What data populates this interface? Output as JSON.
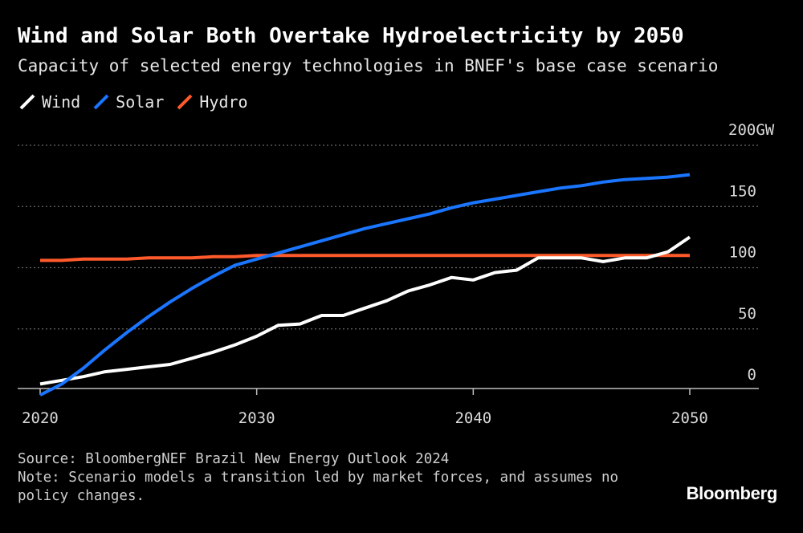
{
  "header": {
    "title": "Wind and Solar Both Overtake Hydroelectricity by 2050",
    "subtitle": "Capacity of selected energy technologies in BNEF's base case scenario"
  },
  "footer": {
    "source": "Source: BloombergNEF Brazil New Energy Outlook 2024",
    "note": "Note: Scenario models a transition led by market forces, and assumes no policy changes.",
    "brand": "Bloomberg"
  },
  "chart_data": {
    "type": "line",
    "title": "Wind and Solar Both Overtake Hydroelectricity by 2050",
    "subtitle": "Capacity of selected energy technologies in BNEF's base case scenario",
    "xlabel": "",
    "ylabel": "",
    "xlim": [
      2020,
      2053
    ],
    "ylim": [
      -10,
      200
    ],
    "x_ticks": [
      2020,
      2030,
      2040,
      2050
    ],
    "x_tick_labels": [
      "2020",
      "2030",
      "2040",
      "2050"
    ],
    "y_ticks": [
      0,
      50,
      100,
      150,
      200
    ],
    "y_tick_labels": [
      "0",
      "50",
      "100",
      "150",
      "200GW"
    ],
    "grid": "horizontal dotted",
    "legend": "top-left",
    "x": [
      2020,
      2021,
      2022,
      2023,
      2024,
      2025,
      2026,
      2027,
      2028,
      2029,
      2030,
      2031,
      2032,
      2033,
      2034,
      2035,
      2036,
      2037,
      2038,
      2039,
      2040,
      2041,
      2042,
      2043,
      2044,
      2045,
      2046,
      2047,
      2048,
      2049,
      2050
    ],
    "series": [
      {
        "name": "Wind",
        "color": "#ffffff",
        "values": [
          5,
          8,
          11,
          15,
          17,
          19,
          21,
          26,
          31,
          37,
          44,
          53,
          54,
          61,
          61,
          67,
          73,
          81,
          86,
          92,
          90,
          96,
          98,
          108,
          108,
          108,
          105,
          108,
          108,
          113,
          125
        ]
      },
      {
        "name": "Solar",
        "color": "#1a75ff",
        "values": [
          -4,
          5,
          18,
          33,
          47,
          60,
          72,
          83,
          93,
          102,
          107,
          112,
          117,
          122,
          127,
          132,
          136,
          140,
          144,
          149,
          153,
          156,
          159,
          162,
          165,
          167,
          170,
          172,
          173,
          174,
          176
        ]
      },
      {
        "name": "Hydro",
        "color": "#ff5a2c",
        "values": [
          106,
          106,
          107,
          107,
          107,
          108,
          108,
          108,
          109,
          109,
          110,
          110,
          110,
          110,
          110,
          110,
          110,
          110,
          110,
          110,
          110,
          110,
          110,
          110,
          110,
          110,
          110,
          110,
          110,
          110,
          110
        ]
      }
    ]
  }
}
